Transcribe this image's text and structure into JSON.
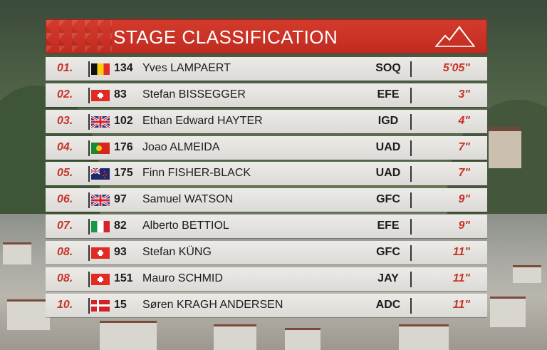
{
  "title": "STAGE CLASSIFICATION",
  "colors": {
    "header": "#c93124",
    "accent": "#c63428",
    "row": "#e4e3e0"
  },
  "icons": {
    "header": "mountain-icon"
  },
  "rows": [
    {
      "pos": "01.",
      "flag": "BEL",
      "num": "134",
      "name": "Yves LAMPAERT",
      "team": "SOQ",
      "time": "5'05\""
    },
    {
      "pos": "02.",
      "flag": "SUI",
      "num": "83",
      "name": "Stefan BISSEGGER",
      "team": "EFE",
      "time": "3\""
    },
    {
      "pos": "03.",
      "flag": "GBR",
      "num": "102",
      "name": "Ethan Edward HAYTER",
      "team": "IGD",
      "time": "4\""
    },
    {
      "pos": "04.",
      "flag": "POR",
      "num": "176",
      "name": "Joao ALMEIDA",
      "team": "UAD",
      "time": "7\""
    },
    {
      "pos": "05.",
      "flag": "NZL",
      "num": "175",
      "name": "Finn FISHER-BLACK",
      "team": "UAD",
      "time": "7\""
    },
    {
      "pos": "06.",
      "flag": "GBR",
      "num": "97",
      "name": "Samuel WATSON",
      "team": "GFC",
      "time": "9\""
    },
    {
      "pos": "07.",
      "flag": "ITA",
      "num": "82",
      "name": "Alberto BETTIOL",
      "team": "EFE",
      "time": "9\""
    },
    {
      "pos": "08.",
      "flag": "SUI",
      "num": "93",
      "name": "Stefan KÜNG",
      "team": "GFC",
      "time": "11\""
    },
    {
      "pos": "08.",
      "flag": "SUI",
      "num": "151",
      "name": "Mauro SCHMID",
      "team": "JAY",
      "time": "11\""
    },
    {
      "pos": "10.",
      "flag": "DEN",
      "num": "15",
      "name": "Søren KRAGH ANDERSEN",
      "team": "ADC",
      "time": "11\""
    }
  ]
}
